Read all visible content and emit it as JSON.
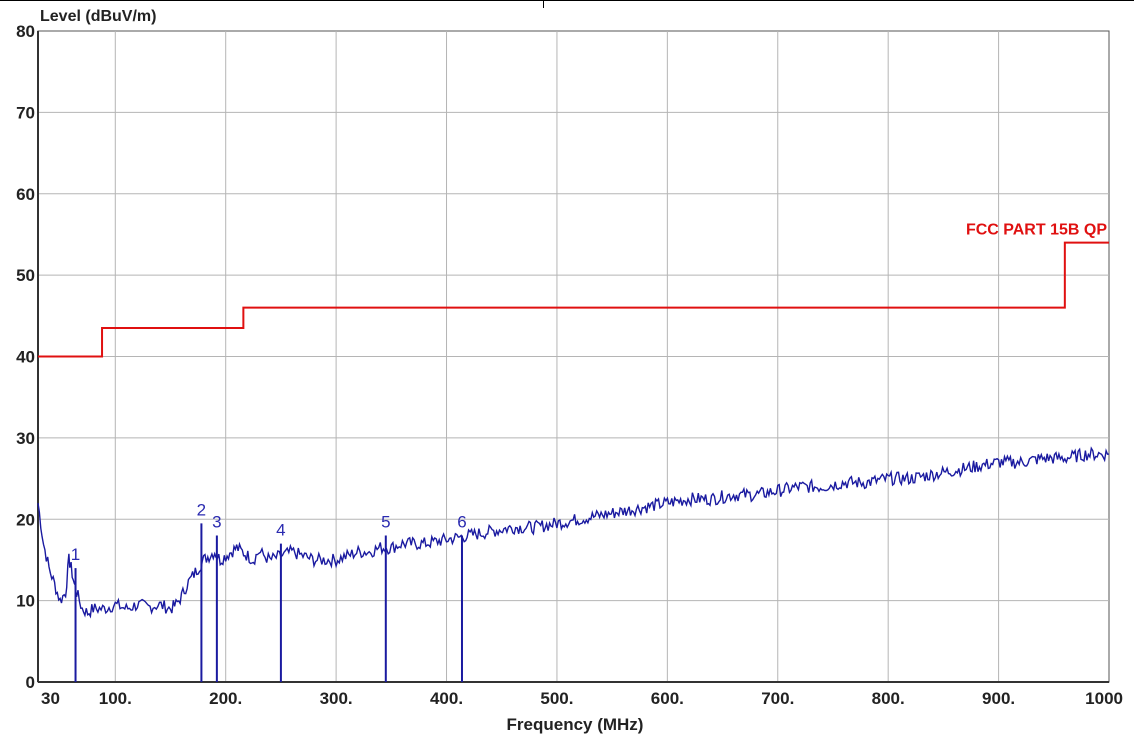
{
  "chart_data": {
    "type": "line",
    "ylabel": "Level (dBuV/m)",
    "xlabel": "Frequency (MHz)",
    "xlim": [
      30,
      1000
    ],
    "ylim": [
      0,
      80
    ],
    "x_ticks": [
      30,
      100,
      200,
      300,
      400,
      500,
      600,
      700,
      800,
      900,
      1000
    ],
    "x_tick_labels": [
      "30",
      "100.",
      "200.",
      "300.",
      "400.",
      "500.",
      "600.",
      "700.",
      "800.",
      "900.",
      "1000"
    ],
    "y_ticks": [
      0,
      10,
      20,
      30,
      40,
      50,
      60,
      70,
      80
    ],
    "y_tick_labels": [
      "0",
      "10",
      "20",
      "30",
      "40",
      "50",
      "60",
      "70",
      "80"
    ],
    "grid": true,
    "limit_line": {
      "name": "FCC PART 15B QP",
      "color": "#e01010",
      "points": [
        [
          30,
          40
        ],
        [
          88,
          40
        ],
        [
          88,
          43.5
        ],
        [
          216,
          43.5
        ],
        [
          216,
          46
        ],
        [
          960,
          46
        ],
        [
          960,
          54
        ],
        [
          1000,
          54
        ]
      ]
    },
    "series": [
      {
        "color": "#1a1aa0",
        "x": [
          30,
          35,
          40,
          45,
          50,
          55,
          58,
          60,
          63,
          65,
          70,
          75,
          80,
          90,
          100,
          110,
          120,
          130,
          140,
          150,
          155,
          160,
          165,
          170,
          175,
          180,
          185,
          190,
          195,
          200,
          205,
          210,
          215,
          220,
          225,
          230,
          240,
          250,
          260,
          270,
          280,
          290,
          300,
          310,
          320,
          330,
          340,
          350,
          360,
          380,
          400,
          420,
          440,
          460,
          480,
          500,
          520,
          540,
          560,
          580,
          600,
          620,
          640,
          660,
          680,
          700,
          720,
          740,
          760,
          780,
          800,
          820,
          840,
          860,
          880,
          900,
          920,
          940,
          960,
          980,
          1000
        ],
        "y": [
          22,
          17,
          14,
          12,
          10,
          11,
          15,
          14,
          12,
          11,
          9,
          8.5,
          9,
          9,
          9.5,
          9,
          9.5,
          9.2,
          9.5,
          9,
          9.5,
          10.5,
          12,
          13,
          14,
          15,
          15.5,
          16,
          15,
          15.5,
          16,
          16.5,
          16,
          15.5,
          15,
          16,
          15,
          15.5,
          16,
          15.5,
          15,
          15,
          15,
          15.5,
          16,
          16,
          16.5,
          16.5,
          17,
          17,
          17.5,
          18,
          18.5,
          19,
          19,
          19.5,
          20,
          20.5,
          21,
          21.5,
          22,
          22.5,
          22.5,
          23,
          23,
          23.5,
          24,
          24,
          24.5,
          24.5,
          25,
          25,
          25.5,
          26,
          26.5,
          27,
          27,
          27.5,
          27.5,
          28,
          28
        ]
      }
    ],
    "markers": [
      {
        "label": "1",
        "x": 64,
        "y": 14
      },
      {
        "label": "2",
        "x": 178,
        "y": 19.5
      },
      {
        "label": "3",
        "x": 192,
        "y": 18
      },
      {
        "label": "4",
        "x": 250,
        "y": 17
      },
      {
        "label": "5",
        "x": 345,
        "y": 18
      },
      {
        "label": "6",
        "x": 414,
        "y": 18
      }
    ]
  }
}
